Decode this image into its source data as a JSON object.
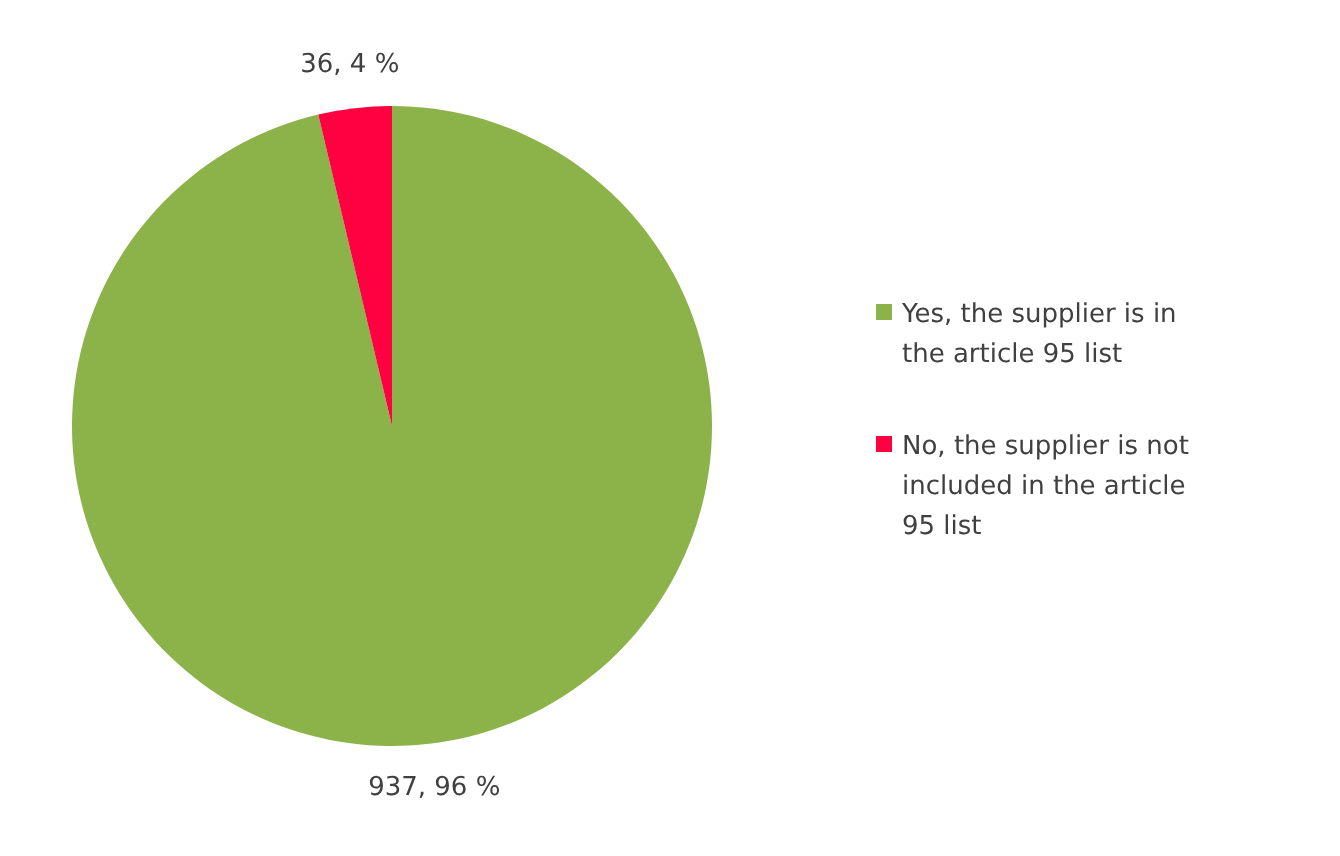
{
  "chart_data": {
    "type": "pie",
    "categories": [
      "Yes, the supplier is in the article 95 list",
      "No, the supplier is not included in the article 95 list"
    ],
    "values": [
      937,
      36
    ],
    "colors": [
      "#8cb24a",
      "#ff0040"
    ],
    "value_labels": [
      "937, 96 %",
      "36, 4 %"
    ],
    "legend": "right"
  }
}
